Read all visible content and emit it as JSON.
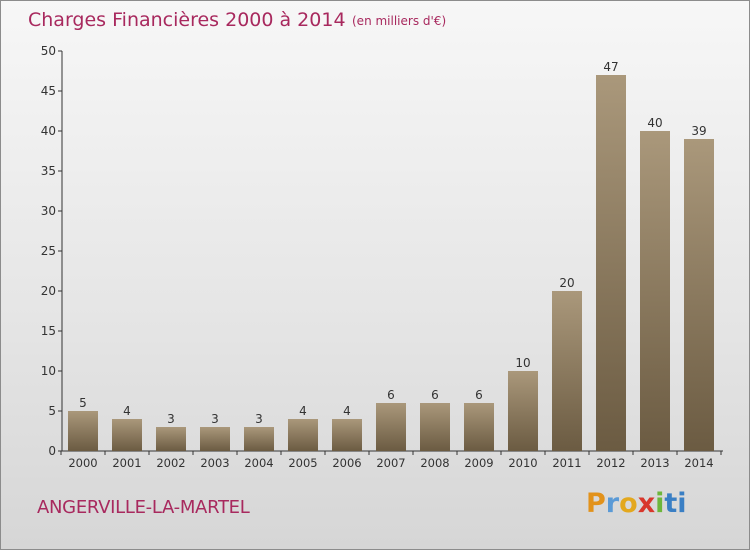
{
  "header": {
    "title": "Charges Financières 2000 à 2014",
    "unit": "(en milliers d'€)"
  },
  "footer": {
    "commune": "ANGERVILLE-LA-MARTEL",
    "brand_letters": [
      "P",
      "r",
      "o",
      "x",
      "i",
      "ti"
    ]
  },
  "colors": {
    "bar_light": "#aa987b",
    "bar_dark": "#6b5b42",
    "title": "#a8295e",
    "axis": "#333333"
  },
  "chart_data": {
    "type": "bar",
    "title": "Charges Financières 2000 à 2014",
    "subtitle": "(en milliers d'€)",
    "categories": [
      "2000",
      "2001",
      "2002",
      "2003",
      "2004",
      "2005",
      "2006",
      "2007",
      "2008",
      "2009",
      "2010",
      "2011",
      "2012",
      "2013",
      "2014"
    ],
    "values": [
      5,
      4,
      3,
      3,
      3,
      4,
      4,
      6,
      6,
      6,
      10,
      20,
      47,
      40,
      39
    ],
    "ylim": [
      0,
      50
    ],
    "yticks": [
      0,
      5,
      10,
      15,
      20,
      25,
      30,
      35,
      40,
      45,
      50
    ],
    "grid": false,
    "data_labels": true
  }
}
